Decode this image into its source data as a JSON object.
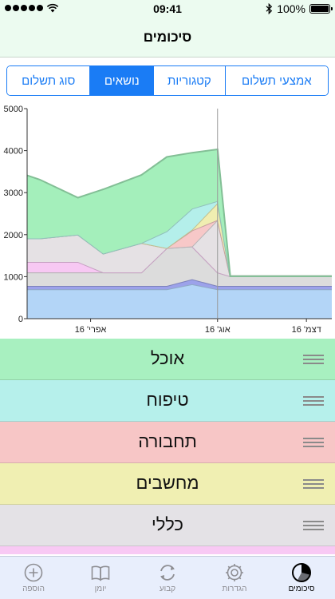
{
  "status_bar": {
    "time": "09:41",
    "battery": "100%",
    "battery_level": 1.0
  },
  "nav": {
    "title": "סיכומים"
  },
  "segments": [
    {
      "label": "אמצעי תשלום",
      "selected": false
    },
    {
      "label": "קטגוריות",
      "selected": false
    },
    {
      "label": "נושאים",
      "selected": true
    },
    {
      "label": "סוג תשלום",
      "selected": false
    }
  ],
  "chart_data": {
    "type": "area",
    "stacked": true,
    "ylim": [
      0,
      5000
    ],
    "y_ticks": [
      "0",
      "1000",
      "2000",
      "3000",
      "4000",
      "5000"
    ],
    "x_ticks": [
      "אפרי' 16",
      "אוג' 16",
      "דצמ' 16"
    ],
    "xlabel": "",
    "ylabel": "",
    "grid": false,
    "x": [
      0,
      0.5,
      2,
      3,
      4.5,
      5.5,
      6.5,
      7.5,
      8,
      9,
      12
    ],
    "series": [
      {
        "color": "#b3d5f7",
        "values": [
          700,
          700,
          700,
          700,
          700,
          700,
          820,
          700,
          700,
          700,
          700
        ]
      },
      {
        "color": "#9ca2ea",
        "values": [
          80,
          80,
          80,
          80,
          80,
          80,
          120,
          80,
          80,
          80,
          80
        ]
      },
      {
        "color": "#dcdcdc",
        "values": [
          320,
          320,
          320,
          320,
          320,
          900,
          780,
          320,
          230,
          230,
          230
        ]
      },
      {
        "color": "#f7c8f3",
        "values": [
          250,
          250,
          250,
          0,
          0,
          0,
          0,
          0,
          0,
          0,
          0
        ]
      },
      {
        "color": "#e5e1e4",
        "values": [
          560,
          560,
          650,
          450,
          700,
          0,
          0,
          1250,
          0,
          0,
          0
        ]
      },
      {
        "color": "#f7c8c8",
        "values": [
          0,
          0,
          0,
          0,
          0,
          0,
          380,
          0,
          0,
          0,
          0
        ]
      },
      {
        "color": "#f0eeb1",
        "values": [
          0,
          0,
          0,
          0,
          0,
          0,
          20,
          400,
          0,
          0,
          0
        ]
      },
      {
        "color": "#b4efea",
        "values": [
          0,
          0,
          0,
          0,
          0,
          400,
          500,
          50,
          0,
          0,
          0
        ]
      },
      {
        "color": "#a4efbb",
        "values": [
          1500,
          1400,
          880,
          1530,
          1620,
          1770,
          1330,
          1230,
          0,
          0,
          0
        ]
      }
    ],
    "marker_x": 7.5
  },
  "categories": [
    {
      "name": "אוכל",
      "color": "#a8f0c0"
    },
    {
      "name": "טיפוח",
      "color": "#b6f0eb"
    },
    {
      "name": "תחבורה",
      "color": "#f7c6c6"
    },
    {
      "name": "מחשבים",
      "color": "#f0efb2"
    },
    {
      "name": "כללי",
      "color": "#e4e2e6"
    },
    {
      "name": "",
      "color": "#f8c9f4"
    }
  ],
  "tabs": [
    {
      "label": "סיכומים",
      "icon": "pie-chart-icon",
      "active": true
    },
    {
      "label": "הגדרות",
      "icon": "gear-icon",
      "active": false
    },
    {
      "label": "קבוע",
      "icon": "repeat-icon",
      "active": false
    },
    {
      "label": "יומן",
      "icon": "book-icon",
      "active": false
    },
    {
      "label": "הוספה",
      "icon": "add-icon",
      "active": false
    }
  ]
}
